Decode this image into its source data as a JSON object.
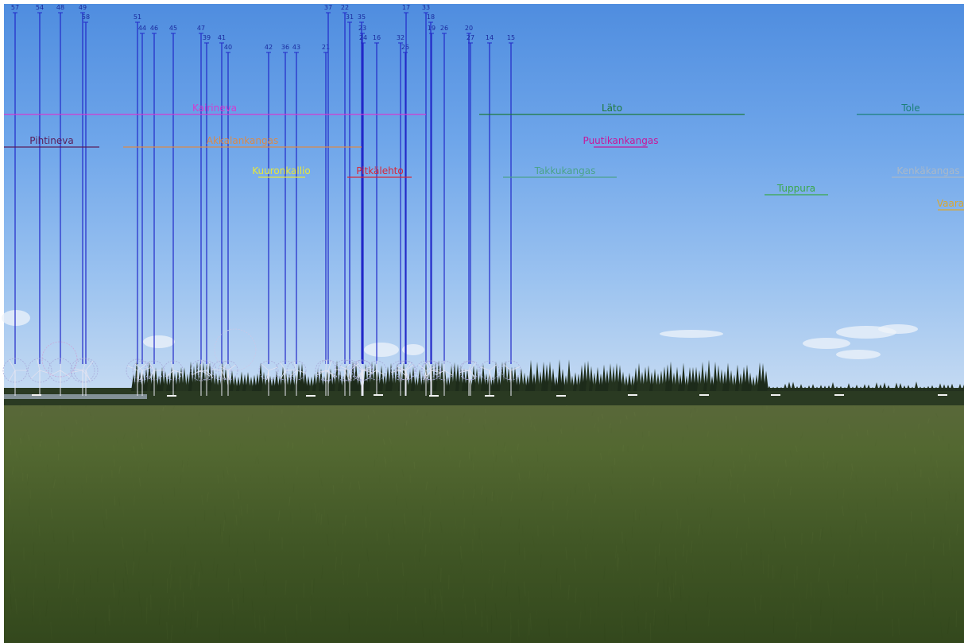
{
  "turbines": [
    {
      "id": "57"
    },
    {
      "id": "54"
    },
    {
      "id": "48"
    },
    {
      "id": "49"
    },
    {
      "id": "58"
    },
    {
      "id": "51"
    },
    {
      "id": "44"
    },
    {
      "id": "46"
    },
    {
      "id": "45"
    },
    {
      "id": "47"
    },
    {
      "id": "39"
    },
    {
      "id": "41"
    },
    {
      "id": "40"
    },
    {
      "id": "42"
    },
    {
      "id": "36"
    },
    {
      "id": "43"
    },
    {
      "id": "21"
    },
    {
      "id": "37"
    },
    {
      "id": "22"
    },
    {
      "id": "31"
    },
    {
      "id": "35"
    },
    {
      "id": "23"
    },
    {
      "id": "24"
    },
    {
      "id": "16"
    },
    {
      "id": "32"
    },
    {
      "id": "25"
    },
    {
      "id": "17"
    },
    {
      "id": "33"
    },
    {
      "id": "18"
    },
    {
      "id": "19"
    },
    {
      "id": "26"
    },
    {
      "id": "20"
    },
    {
      "id": "27"
    },
    {
      "id": "14"
    },
    {
      "id": "15"
    }
  ],
  "areas": [
    {
      "name": "Kairineva",
      "color": "#d43ad0"
    },
    {
      "name": "Läto",
      "color": "#1f7a3a"
    },
    {
      "name": "Tole",
      "color": "#1c7f78"
    },
    {
      "name": "Pihtineva",
      "color": "#5a1e5a"
    },
    {
      "name": "Akkalankangas",
      "color": "#d98a4a"
    },
    {
      "name": "Puutikankangas",
      "color": "#c8179a"
    },
    {
      "name": "Kuuronkallio",
      "color": "#e6e63a"
    },
    {
      "name": "Pitkälehto",
      "color": "#d8283a"
    },
    {
      "name": "Takkukangas",
      "color": "#4aa38a"
    },
    {
      "name": "Kenkäkangas",
      "color": "#a9b8c8"
    },
    {
      "name": "Tuppura",
      "color": "#3aa84a"
    },
    {
      "name": "Vaara",
      "color": "#d9a830"
    }
  ]
}
